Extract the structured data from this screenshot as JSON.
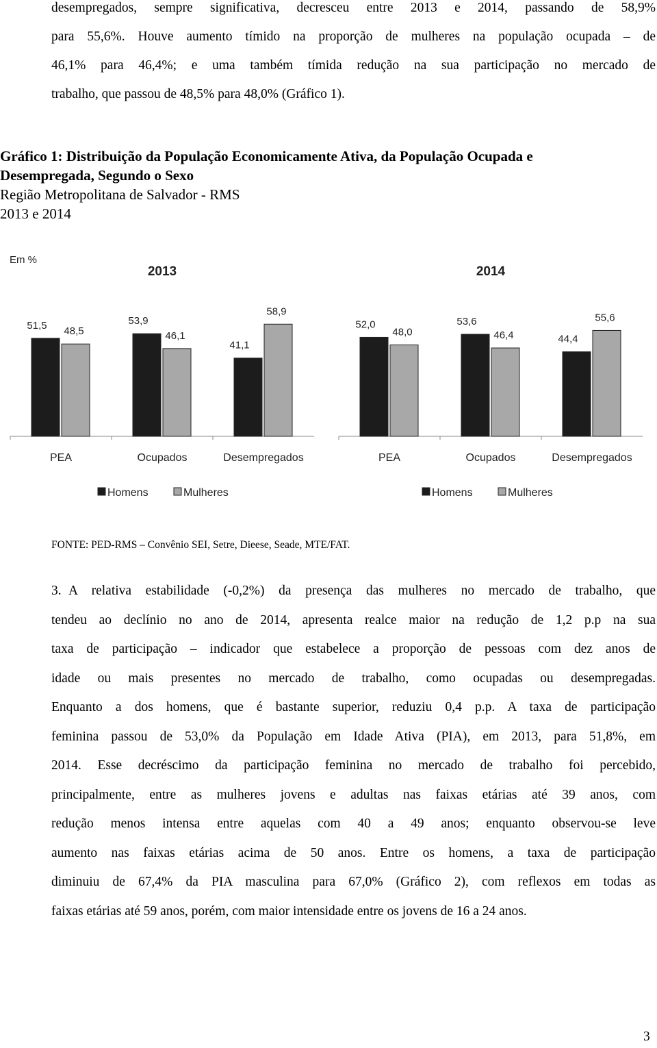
{
  "paragraph_1": {
    "lines": [
      "desempregados, sempre significativa, decresceu entre 2013 e 2014, passando de 58,9%",
      "para 55,6%. Houve aumento tímido na proporção de mulheres na população ocupada – de",
      "46,1% para 46,4%; e uma também tímida redução na sua participação no mercado de",
      "trabalho, que passou de 48,5% para 48,0% (Gráfico 1)."
    ]
  },
  "figure": {
    "caption": [
      "Gráfico 1: Distribuição da População Economicamente Ativa, da População Ocupada e",
      "Desempregada, Segundo o Sexo",
      "Região Metropolitana de Salvador - RMS",
      "2013 e 2014"
    ],
    "unit": "Em %",
    "source": "FONTE: PED-RMS – Convênio SEI, Setre, Dieese, Seade, MTE/FAT."
  },
  "chart_data": [
    {
      "type": "bar",
      "title": "2013",
      "categories": [
        "PEA",
        "Ocupados",
        "Desempregados"
      ],
      "series": [
        {
          "name": "Homens",
          "color": "#1c1c1c",
          "values": [
            51.5,
            53.9,
            41.1
          ],
          "value_labels": [
            "51,5",
            "53,9",
            "41,1"
          ]
        },
        {
          "name": "Mulheres",
          "color": "#a8a8a8",
          "values": [
            48.5,
            46.1,
            58.9
          ],
          "value_labels": [
            "48,5",
            "46,1",
            "58,9"
          ]
        }
      ]
    },
    {
      "type": "bar",
      "title": "2014",
      "categories": [
        "PEA",
        "Ocupados",
        "Desempregados"
      ],
      "series": [
        {
          "name": "Homens",
          "color": "#1c1c1c",
          "values": [
            52.0,
            53.6,
            44.4
          ],
          "value_labels": [
            "52,0",
            "53,6",
            "44,4"
          ]
        },
        {
          "name": "Mulheres",
          "color": "#a8a8a8",
          "values": [
            48.0,
            46.4,
            55.6
          ],
          "value_labels": [
            "48,0",
            "46,4",
            "55,6"
          ]
        }
      ]
    }
  ],
  "paragraph_3": {
    "number": "3.",
    "lines": [
      "A relativa estabilidade (-0,2%) da presença das mulheres no mercado de trabalho, que",
      "tendeu ao declínio no ano de 2014, apresenta realce maior na redução de 1,2 p.p na sua",
      "taxa de participação – indicador que estabelece a proporção de pessoas com dez anos de",
      "idade ou mais presentes no mercado de trabalho, como ocupadas ou desempregadas.",
      "Enquanto a dos homens, que é bastante superior, reduziu 0,4 p.p. A taxa de participação",
      "feminina passou de 53,0% da População em Idade Ativa (PIA), em 2013, para 51,8%, em",
      "2014. Esse decréscimo da participação feminina no mercado de trabalho foi percebido,",
      "principalmente, entre as mulheres jovens e adultas nas faixas etárias até 39 anos, com",
      "redução menos intensa entre aquelas com 40 a 49 anos; enquanto observou-se leve",
      "aumento nas faixas etárias acima de 50 anos. Entre os homens, a taxa de participação",
      "diminuiu de 67,4% da PIA masculina para 67,0% (Gráfico 2), com reflexos em todas as",
      "faixas etárias até 59 anos, porém, com maior intensidade entre os jovens de 16 a 24 anos."
    ]
  },
  "page_number": "3"
}
